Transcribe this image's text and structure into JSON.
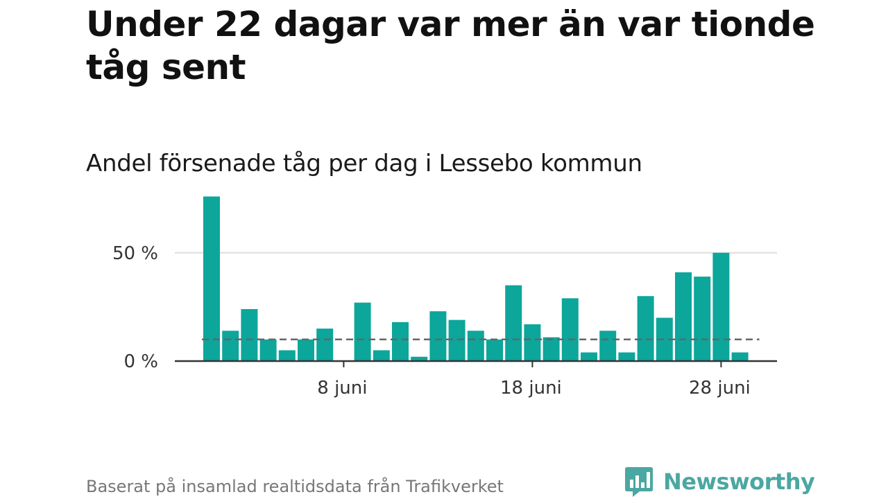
{
  "header": {
    "title": "Under 22 dagar var mer än var tionde tåg sent",
    "subtitle": "Andel försenade tåg per dag i Lessebo kommun"
  },
  "footer": {
    "source": "Baserat på insamlad realtidsdata från Trafikverket",
    "brand_name": "Newsworthy",
    "brand_icon": "bar-chart-speech-bubble-icon"
  },
  "colors": {
    "bar": "#0ca69b",
    "reference_line": "#666666",
    "grid": "#dddddd",
    "axis": "#333333",
    "brand": "#4ba7a1"
  },
  "chart_data": {
    "type": "bar",
    "title": "Andel försenade tåg per dag i Lessebo kommun",
    "xlabel": "",
    "ylabel": "",
    "x_dates": [
      "2024-06-01",
      "2024-06-02",
      "2024-06-03",
      "2024-06-04",
      "2024-06-05",
      "2024-06-06",
      "2024-06-07",
      "2024-06-08",
      "2024-06-09",
      "2024-06-10",
      "2024-06-11",
      "2024-06-12",
      "2024-06-13",
      "2024-06-14",
      "2024-06-15",
      "2024-06-16",
      "2024-06-17",
      "2024-06-18",
      "2024-06-19",
      "2024-06-20",
      "2024-06-21",
      "2024-06-22",
      "2024-06-23",
      "2024-06-24",
      "2024-06-25",
      "2024-06-26",
      "2024-06-27",
      "2024-06-28",
      "2024-06-29"
    ],
    "values": [
      76,
      14,
      24,
      10,
      5,
      10,
      15,
      0,
      27,
      5,
      18,
      2,
      23,
      19,
      14,
      10,
      35,
      17,
      11,
      29,
      4,
      14,
      4,
      30,
      20,
      41,
      39,
      50,
      4
    ],
    "ylim": [
      0,
      80
    ],
    "y_ticks": [
      0,
      50
    ],
    "y_tick_labels": [
      "0 %",
      "50 %"
    ],
    "x_ticks": [
      "2024-06-08",
      "2024-06-18",
      "2024-06-28"
    ],
    "x_tick_labels": [
      "8 juni",
      "18 juni",
      "28 juni"
    ],
    "reference_line": {
      "value": 10,
      "style": "dashed"
    },
    "grid": true,
    "legend": "none"
  }
}
